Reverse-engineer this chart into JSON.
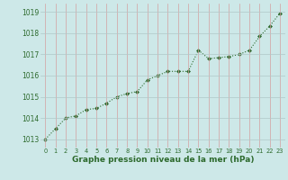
{
  "x": [
    0,
    1,
    2,
    3,
    4,
    5,
    6,
    7,
    8,
    9,
    10,
    11,
    12,
    13,
    14,
    15,
    16,
    17,
    18,
    19,
    20,
    21,
    22,
    23
  ],
  "y": [
    1013.0,
    1013.5,
    1014.0,
    1014.1,
    1014.4,
    1014.45,
    1014.7,
    1015.0,
    1015.15,
    1015.25,
    1015.8,
    1016.0,
    1016.2,
    1016.2,
    1016.2,
    1017.2,
    1016.8,
    1016.85,
    1016.9,
    1017.0,
    1017.2,
    1017.85,
    1018.35,
    1018.95
  ],
  "line_color": "#2d6a2d",
  "marker": "D",
  "marker_size": 2.0,
  "bg_color": "#cde8e8",
  "grid_color": "#b0c8c8",
  "xlabel": "Graphe pression niveau de la mer (hPa)",
  "xlabel_color": "#2d6a2d",
  "tick_color": "#2d6a2d",
  "ylim": [
    1012.6,
    1019.4
  ],
  "yticks": [
    1013,
    1014,
    1015,
    1016,
    1017,
    1018,
    1019
  ],
  "xlim": [
    -0.5,
    23.5
  ],
  "xticks": [
    0,
    1,
    2,
    3,
    4,
    5,
    6,
    7,
    8,
    9,
    10,
    11,
    12,
    13,
    14,
    15,
    16,
    17,
    18,
    19,
    20,
    21,
    22,
    23
  ],
  "linewidth": 0.8,
  "tick_fontsize": 5.5,
  "xlabel_fontsize": 6.5
}
